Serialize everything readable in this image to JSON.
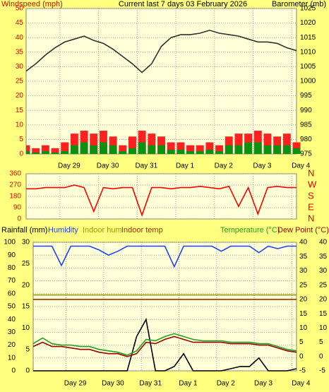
{
  "chart_data": [
    {
      "type": "line",
      "title": "Current last 7 days 03 February 2026",
      "y_label": "Windspeed (mph)",
      "y2_label": "Barometer (mb)",
      "x": [
        0,
        6,
        12,
        18,
        24,
        30,
        36,
        42,
        48,
        54,
        60,
        66,
        72,
        78,
        84,
        90,
        96,
        102,
        108,
        114,
        120,
        126,
        132,
        138,
        144,
        150,
        156,
        162,
        168
      ],
      "xlim": [
        0,
        168
      ],
      "xticks": [
        {
          "value": 21,
          "label": "Day 29"
        },
        {
          "value": 45,
          "label": "Day 30"
        },
        {
          "value": 69,
          "label": "Day 31"
        },
        {
          "value": 93,
          "label": "Day 1"
        },
        {
          "value": 117,
          "label": "Day 2"
        },
        {
          "value": 141,
          "label": "Day 3"
        },
        {
          "value": 165,
          "label": "Day 4"
        }
      ],
      "ylim": [
        0,
        50
      ],
      "yticks": [
        0,
        5,
        10,
        15,
        20,
        25,
        30,
        35,
        40,
        45,
        50
      ],
      "y2lim": [
        975,
        1025
      ],
      "y2ticks": [
        975,
        980,
        985,
        990,
        995,
        1000,
        1005,
        1010,
        1015,
        1020,
        1025
      ],
      "grid": true,
      "series": [
        {
          "type": "bar",
          "color": "#ff2020",
          "values": [
            3,
            2,
            3,
            2,
            4,
            7,
            8,
            7,
            8,
            6,
            3,
            6,
            8,
            7,
            6,
            4,
            4,
            3,
            3,
            4,
            3,
            6,
            7,
            7,
            8,
            7,
            6,
            7,
            4
          ]
        },
        {
          "type": "bar",
          "color": "#109010",
          "values": [
            1,
            0.5,
            1,
            0.5,
            1,
            3,
            4,
            3,
            4,
            3,
            1,
            2,
            4,
            3,
            3,
            1.5,
            1.5,
            1,
            1,
            1.5,
            1,
            3,
            3,
            4,
            4,
            3,
            3,
            3,
            2
          ]
        },
        {
          "type": "line",
          "axis": "y2",
          "color": "#303030",
          "values": [
            1003.5,
            1006,
            1009,
            1011.5,
            1013.5,
            1014.5,
            1015.5,
            1014,
            1013,
            1011,
            1008.5,
            1006,
            1003,
            1006,
            1012,
            1015,
            1016,
            1016,
            1016.5,
            1017.5,
            1016.5,
            1016,
            1015.5,
            1014.5,
            1013.5,
            1013.5,
            1013,
            1011.5,
            1010.5
          ]
        }
      ]
    },
    {
      "type": "line",
      "x": [
        0,
        6,
        12,
        18,
        24,
        30,
        36,
        42,
        48,
        54,
        60,
        66,
        72,
        78,
        84,
        90,
        96,
        102,
        108,
        114,
        120,
        126,
        132,
        138,
        144,
        150,
        156,
        162,
        168
      ],
      "xlim": [
        0,
        168
      ],
      "xticks": [
        21,
        45,
        69,
        93,
        117,
        141,
        165
      ],
      "ylim": [
        0,
        360
      ],
      "yticks": [
        0,
        90,
        180,
        270,
        360
      ],
      "y2lim": [
        0,
        360
      ],
      "y2ticks": [
        {
          "value": 360,
          "label": "N"
        },
        {
          "value": 270,
          "label": "W"
        },
        {
          "value": 180,
          "label": "S"
        },
        {
          "value": 90,
          "label": "E"
        },
        {
          "value": 0,
          "label": "N"
        }
      ],
      "grid": true,
      "series": [
        {
          "type": "line",
          "color": "#ff0000",
          "values": [
            240,
            240,
            250,
            250,
            250,
            270,
            250,
            60,
            250,
            240,
            250,
            250,
            30,
            250,
            250,
            240,
            250,
            250,
            260,
            250,
            240,
            260,
            100,
            250,
            40,
            250,
            260,
            250,
            250
          ]
        }
      ]
    },
    {
      "type": "line",
      "x": [
        0,
        6,
        12,
        18,
        24,
        30,
        36,
        42,
        48,
        54,
        60,
        66,
        72,
        78,
        84,
        90,
        96,
        102,
        108,
        114,
        120,
        126,
        132,
        138,
        144,
        150,
        156,
        162,
        168
      ],
      "xlim": [
        0,
        168
      ],
      "xticks": [
        {
          "value": 21,
          "label": "Day 29"
        },
        {
          "value": 45,
          "label": "Day 30"
        },
        {
          "value": 69,
          "label": "Day 31"
        },
        {
          "value": 93,
          "label": "Day 1"
        },
        {
          "value": 117,
          "label": "Day 2"
        },
        {
          "value": 141,
          "label": "Day 3"
        },
        {
          "value": 165,
          "label": "Day 4"
        }
      ],
      "ylim": [
        0,
        100
      ],
      "yticks": [
        0,
        10,
        20,
        30,
        40,
        50,
        60,
        70,
        80,
        90,
        100
      ],
      "y3lim": [
        0,
        30
      ],
      "y3ticks": [
        0,
        5,
        10,
        15,
        20,
        25,
        30
      ],
      "y2lim": [
        -5,
        40
      ],
      "y2ticks": [
        -5,
        0,
        5,
        10,
        15,
        20,
        25,
        30,
        35,
        40
      ],
      "grid": true,
      "series": [
        {
          "name": "Rainfall (mm)",
          "type": "line",
          "axis": "y3",
          "color": "#000000",
          "values": [
            0,
            0,
            0,
            0,
            0,
            0,
            0,
            0,
            0,
            0,
            0,
            8,
            12,
            0,
            0,
            1,
            4,
            0,
            0,
            0,
            0,
            0.5,
            1,
            1,
            3,
            0,
            0,
            0,
            0.5
          ]
        },
        {
          "name": "Humidity",
          "type": "line",
          "axis": "y",
          "color": "#2040ff",
          "values": [
            97,
            97,
            97,
            82,
            97,
            97,
            97,
            94,
            90,
            93,
            97,
            97,
            97,
            97,
            97,
            81,
            97,
            97,
            97,
            97,
            93,
            97,
            97,
            97,
            92,
            97,
            95,
            97,
            97
          ]
        },
        {
          "name": "Indoor hum",
          "type": "line",
          "axis": "y",
          "color": "#999900",
          "values": [
            59,
            59,
            59,
            59,
            59,
            59,
            59,
            59,
            59,
            59,
            59,
            59,
            59,
            59,
            59,
            59,
            59,
            59,
            59,
            59,
            59,
            59,
            59,
            59,
            59,
            59,
            59,
            59,
            59
          ]
        },
        {
          "name": "Indoor temp",
          "type": "line",
          "axis": "y2",
          "color": "#993300",
          "values": [
            20,
            20,
            20,
            20,
            20,
            20,
            20,
            20,
            20,
            20,
            20,
            20,
            20,
            20,
            20,
            20,
            20,
            20,
            20,
            20,
            20,
            20,
            20,
            20,
            20,
            20,
            20,
            20,
            20
          ]
        },
        {
          "name": "Temperature (°C)",
          "type": "line",
          "axis": "y2",
          "color": "#20a020",
          "values": [
            4.5,
            6.5,
            4.5,
            4,
            4,
            3.5,
            3.5,
            2.5,
            2,
            1.5,
            0.5,
            2,
            6,
            5.5,
            7,
            8,
            7,
            6,
            5.5,
            5.5,
            5.5,
            5,
            5,
            5,
            4.5,
            4.5,
            3.5,
            2.5,
            2
          ]
        },
        {
          "name": "Dew Point (°C)",
          "type": "line",
          "axis": "y2",
          "color": "#990000",
          "values": [
            3.5,
            5,
            3.5,
            3.5,
            3,
            2.5,
            2.5,
            1.5,
            1,
            1,
            0,
            1,
            5,
            4.5,
            6,
            7,
            6,
            5,
            5,
            5,
            5,
            4.5,
            4.5,
            4.5,
            4,
            4,
            3,
            2,
            1.5
          ]
        }
      ]
    }
  ]
}
